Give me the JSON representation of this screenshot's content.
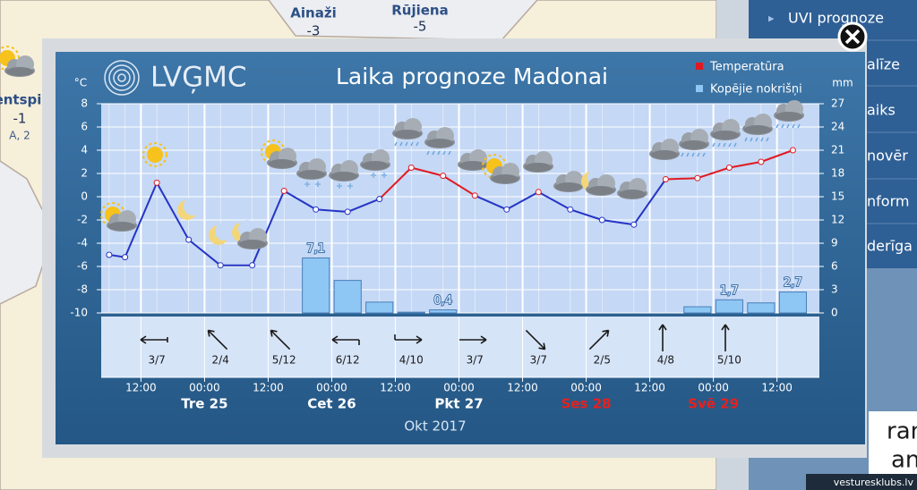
{
  "map": {
    "labels": [
      {
        "name": "Ainaži",
        "value": "-3"
      },
      {
        "name": "Rūjiena",
        "value": "-5"
      },
      {
        "name": "entspi",
        "value": "-1",
        "wind": "A, 2"
      }
    ]
  },
  "sidebar": {
    "items": [
      "UVI prognoze",
      "alīze",
      "aiks",
      "novēr",
      "nform",
      "derīga"
    ]
  },
  "promo": [
    "ram",
    "an"
  ],
  "watermark": "vesturesklubs.lv",
  "chart_data": {
    "type": "line",
    "logo": "LVĢMC",
    "title": "Laika prognoze Madonai",
    "y_unit": "°C",
    "y2_unit": "mm",
    "xlabel": "Okt 2017",
    "grid": true,
    "x": [
      "2017-10-24 06:00",
      "2017-10-24 09:00",
      "2017-10-24 15:00",
      "2017-10-24 21:00",
      "2017-10-25 03:00",
      "2017-10-25 09:00",
      "2017-10-25 15:00",
      "2017-10-25 21:00",
      "2017-10-26 03:00",
      "2017-10-26 09:00",
      "2017-10-26 15:00",
      "2017-10-26 21:00",
      "2017-10-27 03:00",
      "2017-10-27 09:00",
      "2017-10-27 15:00",
      "2017-10-27 21:00",
      "2017-10-28 03:00",
      "2017-10-28 09:00",
      "2017-10-28 15:00",
      "2017-10-28 21:00",
      "2017-10-29 03:00",
      "2017-10-29 09:00",
      "2017-10-29 15:00"
    ],
    "xlim": [
      "2017-10-24 04:30",
      "2017-10-29 20:00"
    ],
    "series": [
      {
        "name": "Temperatūra",
        "color": "#e01a22",
        "negative_color": "#2534c4",
        "values": [
          -5.0,
          -5.2,
          1.2,
          -3.7,
          -5.9,
          -5.9,
          0.5,
          -1.1,
          -1.3,
          -0.2,
          2.5,
          1.8,
          0.1,
          -1.1,
          0.4,
          -1.1,
          -2.0,
          -2.4,
          1.5,
          1.6,
          2.5,
          3.0,
          4.0
        ]
      },
      {
        "name": "Kopējie nokrišņi",
        "type": "bar",
        "axis": "y2",
        "color": "#8ec6f4",
        "values": [
          null,
          null,
          null,
          null,
          null,
          null,
          null,
          7.1,
          4.2,
          1.4,
          0.1,
          0.4,
          null,
          null,
          null,
          null,
          null,
          null,
          null,
          0.8,
          1.7,
          1.3,
          2.7
        ],
        "value_labels": [
          null,
          null,
          null,
          null,
          null,
          null,
          null,
          "7,1",
          null,
          null,
          null,
          "0,4",
          null,
          null,
          null,
          null,
          null,
          null,
          null,
          null,
          "1,7",
          null,
          "2,7"
        ]
      }
    ],
    "ylim": [
      -10,
      8
    ],
    "yticks": [
      -10,
      -8,
      -6,
      -4,
      -2,
      0,
      2,
      4,
      6,
      8
    ],
    "y2lim": [
      0,
      27
    ],
    "y2ticks": [
      0,
      3,
      6,
      9,
      12,
      15,
      18,
      21,
      24,
      27
    ],
    "xticks": [
      {
        "value": "2017-10-24 12:00",
        "label": "12:00"
      },
      {
        "value": "2017-10-25 00:00",
        "label": "00:00"
      },
      {
        "value": "2017-10-25 12:00",
        "label": "12:00"
      },
      {
        "value": "2017-10-26 00:00",
        "label": "00:00"
      },
      {
        "value": "2017-10-26 12:00",
        "label": "12:00"
      },
      {
        "value": "2017-10-27 00:00",
        "label": "00:00"
      },
      {
        "value": "2017-10-27 12:00",
        "label": "12:00"
      },
      {
        "value": "2017-10-28 00:00",
        "label": "00:00"
      },
      {
        "value": "2017-10-28 12:00",
        "label": "12:00"
      },
      {
        "value": "2017-10-29 00:00",
        "label": "00:00"
      },
      {
        "value": "2017-10-29 12:00",
        "label": "12:00"
      }
    ],
    "day_labels": [
      {
        "value": "2017-10-25 00:00",
        "label": "Tre 25",
        "color": "#ffffff"
      },
      {
        "value": "2017-10-26 00:00",
        "label": "Cet 26",
        "color": "#ffffff"
      },
      {
        "value": "2017-10-27 00:00",
        "label": "Pkt 27",
        "color": "#ffffff"
      },
      {
        "value": "2017-10-28 00:00",
        "label": "Ses 28",
        "color": "#e8201e"
      },
      {
        "value": "2017-10-29 00:00",
        "label": "Svē 29",
        "color": "#e8201e"
      }
    ],
    "wind": [
      {
        "x": "2017-10-24 15:00",
        "label": "3/7"
      },
      {
        "x": "2017-10-25 03:00",
        "label": "2/4"
      },
      {
        "x": "2017-10-25 15:00",
        "label": "5/12"
      },
      {
        "x": "2017-10-26 03:00",
        "label": "6/12"
      },
      {
        "x": "2017-10-26 15:00",
        "label": "4/10"
      },
      {
        "x": "2017-10-27 03:00",
        "label": "3/7"
      },
      {
        "x": "2017-10-27 15:00",
        "label": "3/7"
      },
      {
        "x": "2017-10-28 03:00",
        "label": "2/5"
      },
      {
        "x": "2017-10-28 15:00",
        "label": "4/8"
      },
      {
        "x": "2017-10-29 03:00",
        "label": "5/10"
      }
    ]
  }
}
